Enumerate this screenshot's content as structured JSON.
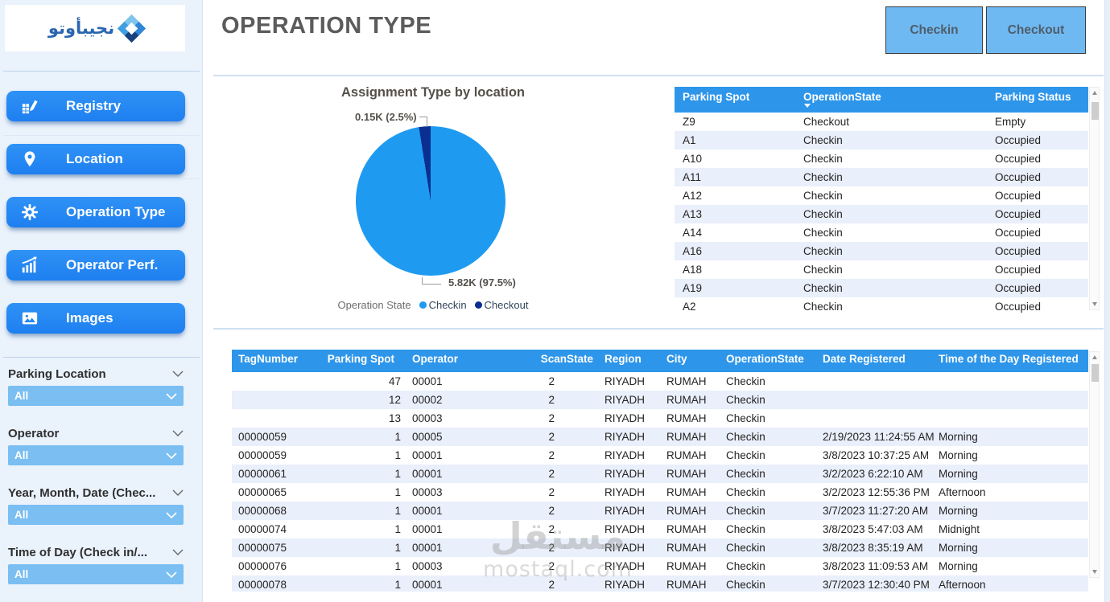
{
  "header": {
    "title": "OPERATION TYPE",
    "checkin_label": "Checkin",
    "checkout_label": "Checkout"
  },
  "sidebar": {
    "logo_text": "نجيبأوتو",
    "nav": [
      {
        "label": "Registry",
        "icon": "registry-icon"
      },
      {
        "label": "Location",
        "icon": "location-pin-icon"
      },
      {
        "label": "Operation Type",
        "icon": "gear-icon"
      },
      {
        "label": "Operator Perf.",
        "icon": "bar-chart-icon"
      },
      {
        "label": "Images",
        "icon": "image-icon"
      }
    ],
    "filters": [
      {
        "label": "Parking Location",
        "value": "All"
      },
      {
        "label": "Operator",
        "value": "All"
      },
      {
        "label": "Year, Month, Date (Chec...",
        "value": "All"
      },
      {
        "label": "Time of Day (Check in/...",
        "value": "All"
      }
    ]
  },
  "chart_data": {
    "type": "pie",
    "title": "Assignment Type by location",
    "legend_title": "Operation State",
    "legend_position": "bottom",
    "series": [
      {
        "name": "Checkin",
        "value": 5820,
        "display": "5.82K (97.5%)",
        "percent": 97.5,
        "color": "#1e9bf0"
      },
      {
        "name": "Checkout",
        "value": 150,
        "display": "0.15K (2.5%)",
        "percent": 2.5,
        "color": "#0b2e91"
      }
    ]
  },
  "spot_table": {
    "columns": [
      "Parking Spot",
      "OperationState",
      "Parking Status"
    ],
    "sorted_column": "OperationState",
    "rows": [
      [
        "Z9",
        "Checkout",
        "Empty"
      ],
      [
        "A1",
        "Checkin",
        "Occupied"
      ],
      [
        "A10",
        "Checkin",
        "Occupied"
      ],
      [
        "A11",
        "Checkin",
        "Occupied"
      ],
      [
        "A12",
        "Checkin",
        "Occupied"
      ],
      [
        "A13",
        "Checkin",
        "Occupied"
      ],
      [
        "A14",
        "Checkin",
        "Occupied"
      ],
      [
        "A16",
        "Checkin",
        "Occupied"
      ],
      [
        "A18",
        "Checkin",
        "Occupied"
      ],
      [
        "A19",
        "Checkin",
        "Occupied"
      ],
      [
        "A2",
        "Checkin",
        "Occupied"
      ]
    ]
  },
  "log_table": {
    "columns": [
      "TagNumber",
      "Parking Spot",
      "Operator",
      "ScanState",
      "Region",
      "City",
      "OperationState",
      "Date Registered",
      "Time of the Day Registered"
    ],
    "rows": [
      [
        "",
        "47",
        "00001",
        "2",
        "RIYADH",
        "RUMAH",
        "Checkin",
        "",
        ""
      ],
      [
        "",
        "12",
        "00002",
        "2",
        "RIYADH",
        "RUMAH",
        "Checkin",
        "",
        ""
      ],
      [
        "",
        "13",
        "00003",
        "2",
        "RIYADH",
        "RUMAH",
        "Checkin",
        "",
        ""
      ],
      [
        "00000059",
        "1",
        "00005",
        "2",
        "RIYADH",
        "RUMAH",
        "Checkin",
        "2/19/2023 11:24:55 AM",
        "Morning"
      ],
      [
        "00000059",
        "1",
        "00001",
        "2",
        "RIYADH",
        "RUMAH",
        "Checkin",
        "3/8/2023 10:37:25 AM",
        "Morning"
      ],
      [
        "00000061",
        "1",
        "00001",
        "2",
        "RIYADH",
        "RUMAH",
        "Checkin",
        "3/2/2023 6:22:10 AM",
        "Morning"
      ],
      [
        "00000065",
        "1",
        "00003",
        "2",
        "RIYADH",
        "RUMAH",
        "Checkin",
        "3/2/2023 12:55:36 PM",
        "Afternoon"
      ],
      [
        "00000068",
        "1",
        "00001",
        "2",
        "RIYADH",
        "RUMAH",
        "Checkin",
        "3/7/2023 11:27:20 AM",
        "Morning"
      ],
      [
        "00000074",
        "1",
        "00001",
        "2",
        "RIYADH",
        "RUMAH",
        "Checkin",
        "3/8/2023 5:47:03 AM",
        "Midnight"
      ],
      [
        "00000075",
        "1",
        "00001",
        "2",
        "RIYADH",
        "RUMAH",
        "Checkin",
        "3/8/2023 8:35:19 AM",
        "Morning"
      ],
      [
        "00000076",
        "1",
        "00003",
        "2",
        "RIYADH",
        "RUMAH",
        "Checkin",
        "3/8/2023 11:09:53 AM",
        "Morning"
      ],
      [
        "00000078",
        "1",
        "00001",
        "2",
        "RIYADH",
        "RUMAH",
        "Checkin",
        "3/7/2023 12:30:40 PM",
        "Afternoon"
      ]
    ]
  },
  "watermark": {
    "arabic": "مستقل",
    "latin": "mostaql.com"
  },
  "colors": {
    "table_header": "#2e96ea",
    "row_alt": "#e9effb",
    "nav_button": "#2287f0",
    "dropdown": "#7abef2",
    "top_button": "#6fb9f3",
    "pie_checkin": "#1e9bf0",
    "pie_checkout": "#0b2e91",
    "sidebar_bg": "#eaf2fc"
  }
}
